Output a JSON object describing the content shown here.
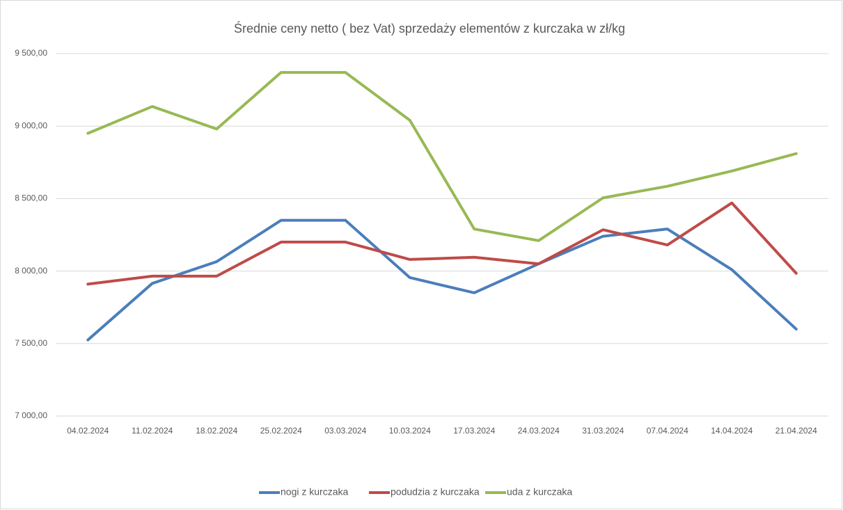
{
  "chart_data": {
    "type": "line",
    "title": "Średnie ceny netto ( bez Vat) sprzedaży elementów z kurczaka w zł/kg",
    "categories": [
      "04.02.2024",
      "11.02.2024",
      "18.02.2024",
      "25.02.2024",
      "03.03.2024",
      "10.03.2024",
      "17.03.2024",
      "24.03.2024",
      "31.03.2024",
      "07.04.2024",
      "14.04.2024",
      "21.04.2024"
    ],
    "series": [
      {
        "name": "nogi z kurczaka",
        "color": "#4a7ebb",
        "values": [
          7525,
          7915,
          8065,
          8350,
          8350,
          7955,
          7850,
          8050,
          8240,
          8290,
          8010,
          7600
        ]
      },
      {
        "name": "podudzia z kurczaka",
        "color": "#be4b48",
        "values": [
          7910,
          7965,
          7965,
          8200,
          8200,
          8080,
          8095,
          8050,
          8285,
          8180,
          8470,
          7985
        ]
      },
      {
        "name": "uda z kurczaka",
        "color": "#98b954",
        "values": [
          8950,
          9135,
          8980,
          9370,
          9370,
          9040,
          8290,
          8210,
          8505,
          8585,
          8690,
          8810
        ]
      }
    ],
    "ylim": [
      7000,
      9500
    ],
    "yticks": [
      {
        "value": 7000,
        "label": "7 000,00"
      },
      {
        "value": 7500,
        "label": "7 500,00"
      },
      {
        "value": 8000,
        "label": "8 000,00"
      },
      {
        "value": 8500,
        "label": "8 500,00"
      },
      {
        "value": 9000,
        "label": "9 000,00"
      },
      {
        "value": 9500,
        "label": "9 500,00"
      }
    ],
    "grid": true,
    "legend": "bottom"
  }
}
